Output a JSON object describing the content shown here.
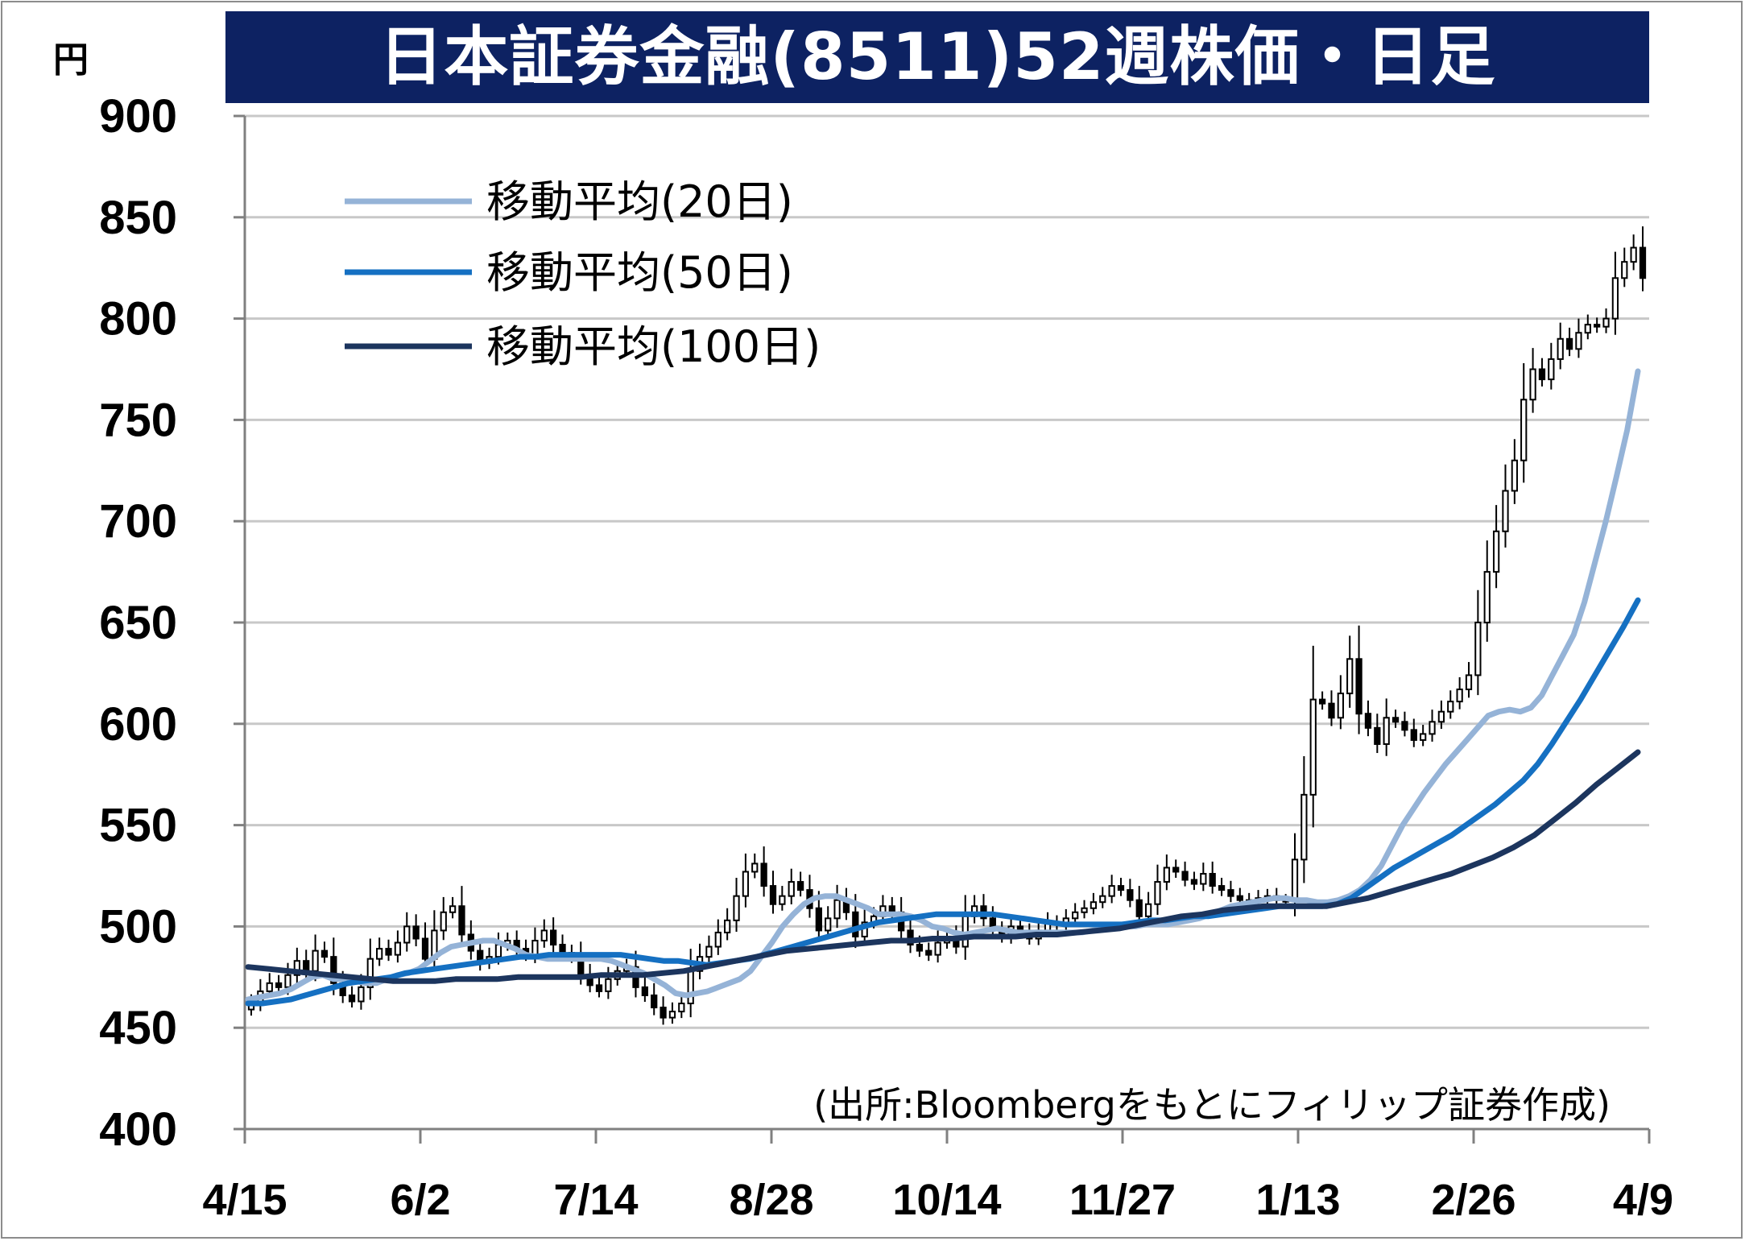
{
  "title": "日本証券金融(8511)52週株価・日足",
  "unit": "円",
  "source_note": "(出所:Bloombergをもとにフィリップ証券作成)",
  "colors": {
    "title_bg": "#0d2262",
    "title_text": "#ffffff",
    "ma20": "#95b3d7",
    "ma50": "#1570c2",
    "ma100": "#1c355e",
    "grid": "#c8c8c8",
    "axis": "#808080",
    "candle": "#000000"
  },
  "chart_data": {
    "type": "line",
    "title": "日本証券金融(8511)52週株価・日足",
    "ylabel": "円",
    "ylim": [
      400,
      900
    ],
    "yticks": [
      400,
      450,
      500,
      550,
      600,
      650,
      700,
      750,
      800,
      850,
      900
    ],
    "xticks": [
      "4/15",
      "6/2",
      "7/14",
      "8/28",
      "10/14",
      "11/27",
      "1/13",
      "2/26",
      "4/9"
    ],
    "grid": true,
    "legend_position": "top-left",
    "candlestick": {
      "name": "日足",
      "description_values": "close",
      "close": [
        462,
        468,
        472,
        470,
        476,
        483,
        478,
        488,
        485,
        472,
        466,
        463,
        470,
        484,
        489,
        486,
        492,
        500,
        494,
        484,
        498,
        507,
        510,
        496,
        488,
        482,
        485,
        491,
        493,
        489,
        486,
        493,
        498,
        491,
        487,
        485,
        476,
        471,
        468,
        474,
        478,
        480,
        470,
        466,
        460,
        455,
        458,
        462,
        478,
        485,
        490,
        497,
        503,
        515,
        527,
        531,
        520,
        511,
        515,
        522,
        518,
        509,
        498,
        504,
        513,
        507,
        495,
        502,
        505,
        510,
        507,
        498,
        491,
        488,
        486,
        492,
        495,
        490,
        505,
        510,
        504,
        498,
        495,
        500,
        497,
        494,
        498,
        502,
        501,
        504,
        507,
        509,
        512,
        515,
        520,
        518,
        513,
        505,
        511,
        522,
        529,
        527,
        523,
        521,
        526,
        520,
        518,
        515,
        513,
        512,
        514,
        515,
        513,
        513,
        533,
        565,
        612,
        610,
        603,
        615,
        632,
        605,
        598,
        590,
        603,
        601,
        597,
        592,
        595,
        601,
        606,
        611,
        617,
        624,
        650,
        675,
        695,
        715,
        730,
        760,
        775,
        770,
        780,
        790,
        785,
        793,
        797,
        796,
        800,
        820,
        828,
        835,
        820
      ]
    },
    "series": [
      {
        "name": "移動平均(20日)",
        "y_start": 464,
        "values": [
          464,
          465,
          466,
          467,
          469,
          472,
          475,
          476,
          474,
          474,
          473,
          472,
          472,
          474,
          476,
          477,
          479,
          483,
          487,
          490,
          491,
          492,
          493,
          493,
          491,
          489,
          486,
          485,
          484,
          484,
          484,
          484,
          484,
          484,
          483,
          481,
          479,
          477,
          474,
          471,
          467,
          466,
          467,
          468,
          470,
          472,
          474,
          478,
          485,
          492,
          500,
          506,
          511,
          514,
          515,
          515,
          513,
          511,
          509,
          506,
          506,
          506,
          505,
          503,
          500,
          499,
          497,
          496,
          497,
          498,
          499,
          498,
          497,
          497,
          497,
          497,
          497,
          497,
          497,
          498,
          499,
          500,
          500,
          500,
          501,
          501,
          501,
          502,
          503,
          504,
          506,
          508,
          510,
          511,
          512,
          513,
          514,
          514,
          513,
          513,
          512,
          512,
          513,
          515,
          518,
          523,
          530,
          540,
          550,
          558,
          566,
          573,
          580,
          586,
          592,
          598,
          604,
          606,
          607,
          606,
          608,
          614,
          624,
          634,
          644,
          660,
          680,
          700,
          722,
          745,
          774
        ]
      },
      {
        "name": "移動平均(50日)",
        "values": [
          462,
          462,
          463,
          464,
          466,
          468,
          470,
          472,
          473,
          474,
          475,
          477,
          478,
          479,
          480,
          481,
          482,
          483,
          484,
          485,
          485,
          486,
          486,
          486,
          486,
          486,
          486,
          485,
          484,
          483,
          483,
          482,
          481,
          482,
          483,
          484,
          486,
          488,
          490,
          492,
          494,
          496,
          498,
          500,
          502,
          503,
          504,
          505,
          506,
          506,
          506,
          506,
          506,
          505,
          504,
          503,
          502,
          501,
          501,
          501,
          501,
          501,
          502,
          503,
          503,
          504,
          505,
          505,
          506,
          507,
          508,
          509,
          510,
          510,
          510,
          510,
          511,
          514,
          519,
          524,
          529,
          533,
          537,
          541,
          545,
          550,
          555,
          560,
          566,
          572,
          580,
          590,
          601,
          612,
          624,
          636,
          648,
          661
        ]
      },
      {
        "name": "移動平均(100日)",
        "values": [
          480,
          479,
          478,
          477,
          476,
          475,
          474,
          473,
          473,
          473,
          474,
          474,
          474,
          475,
          475,
          475,
          475,
          476,
          476,
          476,
          477,
          478,
          480,
          482,
          484,
          486,
          488,
          489,
          490,
          491,
          492,
          493,
          493,
          494,
          494,
          495,
          495,
          495,
          496,
          496,
          497,
          498,
          499,
          501,
          503,
          505,
          506,
          508,
          509,
          510,
          510,
          510,
          510,
          512,
          514,
          517,
          520,
          523,
          526,
          530,
          534,
          539,
          545,
          553,
          561,
          570,
          578,
          586
        ]
      }
    ]
  }
}
